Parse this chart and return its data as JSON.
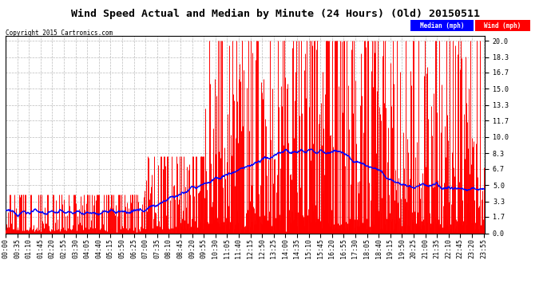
{
  "title": "Wind Speed Actual and Median by Minute (24 Hours) (Old) 20150511",
  "copyright": "Copyright 2015 Cartronics.com",
  "yticks": [
    0.0,
    1.7,
    3.3,
    5.0,
    6.7,
    8.3,
    10.0,
    11.7,
    13.3,
    15.0,
    16.7,
    18.3,
    20.0
  ],
  "ylim": [
    0.0,
    20.5
  ],
  "xlim": [
    0,
    1439
  ],
  "background_color": "#ffffff",
  "plot_bg_color": "#ffffff",
  "grid_color": "#bbbbbb",
  "wind_color": "#ff0000",
  "median_color": "#0000ff",
  "title_fontsize": 9.5,
  "tick_fontsize": 6,
  "legend_median_bg": "#0000ff",
  "legend_wind_bg": "#ff0000",
  "xtick_positions": [
    0,
    35,
    70,
    105,
    140,
    175,
    210,
    245,
    280,
    315,
    350,
    385,
    420,
    455,
    490,
    525,
    560,
    595,
    630,
    665,
    700,
    735,
    770,
    805,
    840,
    875,
    910,
    945,
    980,
    1015,
    1050,
    1085,
    1120,
    1155,
    1190,
    1225,
    1260,
    1295,
    1330,
    1365,
    1400,
    1435
  ],
  "xtick_labels": [
    "00:00",
    "00:35",
    "01:10",
    "01:45",
    "02:20",
    "02:55",
    "03:30",
    "04:05",
    "04:40",
    "05:15",
    "05:50",
    "06:25",
    "07:00",
    "07:35",
    "08:10",
    "08:45",
    "09:20",
    "09:55",
    "10:30",
    "11:05",
    "11:40",
    "12:15",
    "12:50",
    "13:25",
    "14:00",
    "14:35",
    "15:10",
    "15:45",
    "16:20",
    "16:55",
    "17:30",
    "18:05",
    "18:40",
    "19:15",
    "19:50",
    "20:25",
    "21:00",
    "21:35",
    "22:10",
    "22:45",
    "23:20",
    "23:55"
  ]
}
